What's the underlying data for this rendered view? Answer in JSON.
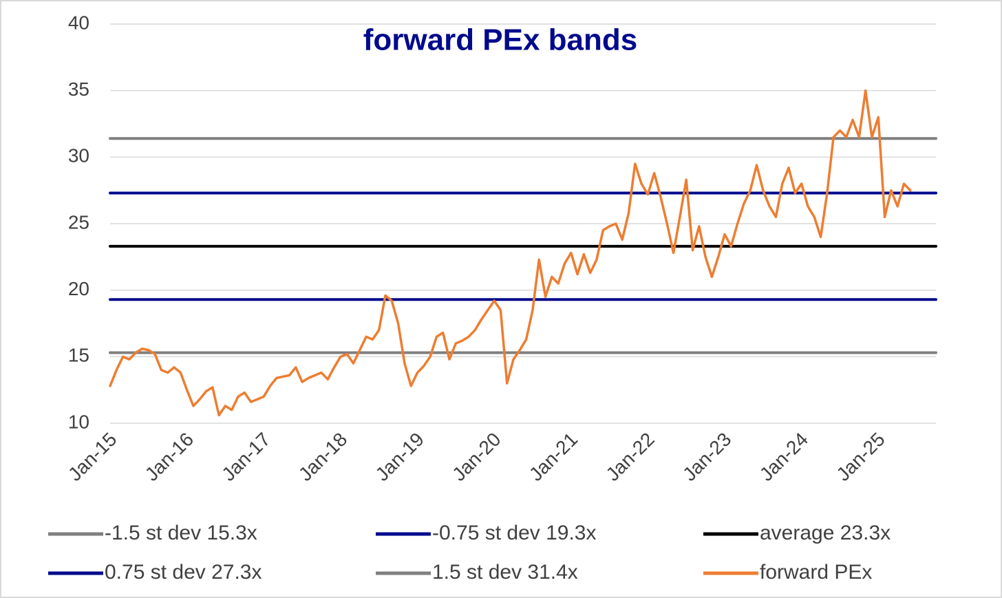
{
  "chart_data": {
    "type": "line",
    "title": "forward PEx bands",
    "categories": [
      "Jan-15",
      null,
      null,
      null,
      null,
      null,
      null,
      null,
      null,
      null,
      null,
      null,
      "Jan-16",
      null,
      null,
      null,
      null,
      null,
      null,
      null,
      null,
      null,
      null,
      null,
      "Jan-17",
      null,
      null,
      null,
      null,
      null,
      null,
      null,
      null,
      null,
      null,
      null,
      "Jan-18",
      null,
      null,
      null,
      null,
      null,
      null,
      null,
      null,
      null,
      null,
      null,
      "Jan-19",
      null,
      null,
      null,
      null,
      null,
      null,
      null,
      null,
      null,
      null,
      null,
      "Jan-20",
      null,
      null,
      null,
      null,
      null,
      null,
      null,
      null,
      null,
      null,
      null,
      "Jan-21",
      null,
      null,
      null,
      null,
      null,
      null,
      null,
      null,
      null,
      null,
      null,
      "Jan-22",
      null,
      null,
      null,
      null,
      null,
      null,
      null,
      null,
      null,
      null,
      null,
      "Jan-23",
      null,
      null,
      null,
      null,
      null,
      null,
      null,
      null,
      null,
      null,
      null,
      "Jan-24",
      null,
      null,
      null,
      null,
      null,
      null,
      null,
      null,
      null,
      null,
      null,
      "Jan-25",
      null,
      null,
      null,
      null,
      null,
      null,
      null,
      null,
      null
    ],
    "ylim": [
      10,
      40
    ],
    "yticks": [
      10,
      15,
      20,
      25,
      30,
      35,
      40
    ],
    "grid": true,
    "series": [
      {
        "name": "-1.5 st dev 15.3x",
        "color": "#7f7f7f",
        "width": 4,
        "values": [
          15.3,
          15.3,
          15.3,
          15.3,
          15.3,
          15.3,
          15.3,
          15.3,
          15.3,
          15.3,
          15.3,
          15.3,
          15.3,
          15.3,
          15.3,
          15.3,
          15.3,
          15.3,
          15.3,
          15.3,
          15.3,
          15.3,
          15.3,
          15.3,
          15.3,
          15.3,
          15.3,
          15.3,
          15.3,
          15.3,
          15.3,
          15.3,
          15.3,
          15.3,
          15.3,
          15.3,
          15.3,
          15.3,
          15.3,
          15.3,
          15.3,
          15.3,
          15.3,
          15.3,
          15.3,
          15.3,
          15.3,
          15.3,
          15.3,
          15.3,
          15.3,
          15.3,
          15.3,
          15.3,
          15.3,
          15.3,
          15.3,
          15.3,
          15.3,
          15.3,
          15.3,
          15.3,
          15.3,
          15.3,
          15.3,
          15.3,
          15.3,
          15.3,
          15.3,
          15.3,
          15.3,
          15.3,
          15.3,
          15.3,
          15.3,
          15.3,
          15.3,
          15.3,
          15.3,
          15.3,
          15.3,
          15.3,
          15.3,
          15.3,
          15.3,
          15.3,
          15.3,
          15.3,
          15.3,
          15.3,
          15.3,
          15.3,
          15.3,
          15.3,
          15.3,
          15.3,
          15.3,
          15.3,
          15.3,
          15.3,
          15.3,
          15.3,
          15.3,
          15.3,
          15.3,
          15.3,
          15.3,
          15.3,
          15.3,
          15.3,
          15.3,
          15.3,
          15.3,
          15.3,
          15.3,
          15.3,
          15.3,
          15.3,
          15.3,
          15.3,
          15.3,
          15.3,
          15.3,
          15.3,
          15.3,
          15.3,
          15.3,
          15.3,
          15.3,
          15.3
        ]
      },
      {
        "name": "-0.75 st dev 19.3x",
        "color": "#000a8c",
        "width": 4,
        "values": [
          19.3,
          19.3,
          19.3,
          19.3,
          19.3,
          19.3,
          19.3,
          19.3,
          19.3,
          19.3,
          19.3,
          19.3,
          19.3,
          19.3,
          19.3,
          19.3,
          19.3,
          19.3,
          19.3,
          19.3,
          19.3,
          19.3,
          19.3,
          19.3,
          19.3,
          19.3,
          19.3,
          19.3,
          19.3,
          19.3,
          19.3,
          19.3,
          19.3,
          19.3,
          19.3,
          19.3,
          19.3,
          19.3,
          19.3,
          19.3,
          19.3,
          19.3,
          19.3,
          19.3,
          19.3,
          19.3,
          19.3,
          19.3,
          19.3,
          19.3,
          19.3,
          19.3,
          19.3,
          19.3,
          19.3,
          19.3,
          19.3,
          19.3,
          19.3,
          19.3,
          19.3,
          19.3,
          19.3,
          19.3,
          19.3,
          19.3,
          19.3,
          19.3,
          19.3,
          19.3,
          19.3,
          19.3,
          19.3,
          19.3,
          19.3,
          19.3,
          19.3,
          19.3,
          19.3,
          19.3,
          19.3,
          19.3,
          19.3,
          19.3,
          19.3,
          19.3,
          19.3,
          19.3,
          19.3,
          19.3,
          19.3,
          19.3,
          19.3,
          19.3,
          19.3,
          19.3,
          19.3,
          19.3,
          19.3,
          19.3,
          19.3,
          19.3,
          19.3,
          19.3,
          19.3,
          19.3,
          19.3,
          19.3,
          19.3,
          19.3,
          19.3,
          19.3,
          19.3,
          19.3,
          19.3,
          19.3,
          19.3,
          19.3,
          19.3,
          19.3,
          19.3,
          19.3,
          19.3,
          19.3,
          19.3,
          19.3,
          19.3,
          19.3,
          19.3,
          19.3
        ]
      },
      {
        "name": "average 23.3x",
        "color": "#000000",
        "width": 4,
        "values": [
          23.3,
          23.3,
          23.3,
          23.3,
          23.3,
          23.3,
          23.3,
          23.3,
          23.3,
          23.3,
          23.3,
          23.3,
          23.3,
          23.3,
          23.3,
          23.3,
          23.3,
          23.3,
          23.3,
          23.3,
          23.3,
          23.3,
          23.3,
          23.3,
          23.3,
          23.3,
          23.3,
          23.3,
          23.3,
          23.3,
          23.3,
          23.3,
          23.3,
          23.3,
          23.3,
          23.3,
          23.3,
          23.3,
          23.3,
          23.3,
          23.3,
          23.3,
          23.3,
          23.3,
          23.3,
          23.3,
          23.3,
          23.3,
          23.3,
          23.3,
          23.3,
          23.3,
          23.3,
          23.3,
          23.3,
          23.3,
          23.3,
          23.3,
          23.3,
          23.3,
          23.3,
          23.3,
          23.3,
          23.3,
          23.3,
          23.3,
          23.3,
          23.3,
          23.3,
          23.3,
          23.3,
          23.3,
          23.3,
          23.3,
          23.3,
          23.3,
          23.3,
          23.3,
          23.3,
          23.3,
          23.3,
          23.3,
          23.3,
          23.3,
          23.3,
          23.3,
          23.3,
          23.3,
          23.3,
          23.3,
          23.3,
          23.3,
          23.3,
          23.3,
          23.3,
          23.3,
          23.3,
          23.3,
          23.3,
          23.3,
          23.3,
          23.3,
          23.3,
          23.3,
          23.3,
          23.3,
          23.3,
          23.3,
          23.3,
          23.3,
          23.3,
          23.3,
          23.3,
          23.3,
          23.3,
          23.3,
          23.3,
          23.3,
          23.3,
          23.3,
          23.3,
          23.3,
          23.3,
          23.3,
          23.3,
          23.3,
          23.3,
          23.3,
          23.3,
          23.3
        ]
      },
      {
        "name": "0.75 st dev 27.3x",
        "color": "#000a8c",
        "width": 4,
        "values": [
          27.3,
          27.3,
          27.3,
          27.3,
          27.3,
          27.3,
          27.3,
          27.3,
          27.3,
          27.3,
          27.3,
          27.3,
          27.3,
          27.3,
          27.3,
          27.3,
          27.3,
          27.3,
          27.3,
          27.3,
          27.3,
          27.3,
          27.3,
          27.3,
          27.3,
          27.3,
          27.3,
          27.3,
          27.3,
          27.3,
          27.3,
          27.3,
          27.3,
          27.3,
          27.3,
          27.3,
          27.3,
          27.3,
          27.3,
          27.3,
          27.3,
          27.3,
          27.3,
          27.3,
          27.3,
          27.3,
          27.3,
          27.3,
          27.3,
          27.3,
          27.3,
          27.3,
          27.3,
          27.3,
          27.3,
          27.3,
          27.3,
          27.3,
          27.3,
          27.3,
          27.3,
          27.3,
          27.3,
          27.3,
          27.3,
          27.3,
          27.3,
          27.3,
          27.3,
          27.3,
          27.3,
          27.3,
          27.3,
          27.3,
          27.3,
          27.3,
          27.3,
          27.3,
          27.3,
          27.3,
          27.3,
          27.3,
          27.3,
          27.3,
          27.3,
          27.3,
          27.3,
          27.3,
          27.3,
          27.3,
          27.3,
          27.3,
          27.3,
          27.3,
          27.3,
          27.3,
          27.3,
          27.3,
          27.3,
          27.3,
          27.3,
          27.3,
          27.3,
          27.3,
          27.3,
          27.3,
          27.3,
          27.3,
          27.3,
          27.3,
          27.3,
          27.3,
          27.3,
          27.3,
          27.3,
          27.3,
          27.3,
          27.3,
          27.3,
          27.3,
          27.3,
          27.3,
          27.3,
          27.3,
          27.3,
          27.3,
          27.3,
          27.3,
          27.3,
          27.3
        ]
      },
      {
        "name": "1.5 st dev 31.4x",
        "color": "#7f7f7f",
        "width": 4,
        "values": [
          31.4,
          31.4,
          31.4,
          31.4,
          31.4,
          31.4,
          31.4,
          31.4,
          31.4,
          31.4,
          31.4,
          31.4,
          31.4,
          31.4,
          31.4,
          31.4,
          31.4,
          31.4,
          31.4,
          31.4,
          31.4,
          31.4,
          31.4,
          31.4,
          31.4,
          31.4,
          31.4,
          31.4,
          31.4,
          31.4,
          31.4,
          31.4,
          31.4,
          31.4,
          31.4,
          31.4,
          31.4,
          31.4,
          31.4,
          31.4,
          31.4,
          31.4,
          31.4,
          31.4,
          31.4,
          31.4,
          31.4,
          31.4,
          31.4,
          31.4,
          31.4,
          31.4,
          31.4,
          31.4,
          31.4,
          31.4,
          31.4,
          31.4,
          31.4,
          31.4,
          31.4,
          31.4,
          31.4,
          31.4,
          31.4,
          31.4,
          31.4,
          31.4,
          31.4,
          31.4,
          31.4,
          31.4,
          31.4,
          31.4,
          31.4,
          31.4,
          31.4,
          31.4,
          31.4,
          31.4,
          31.4,
          31.4,
          31.4,
          31.4,
          31.4,
          31.4,
          31.4,
          31.4,
          31.4,
          31.4,
          31.4,
          31.4,
          31.4,
          31.4,
          31.4,
          31.4,
          31.4,
          31.4,
          31.4,
          31.4,
          31.4,
          31.4,
          31.4,
          31.4,
          31.4,
          31.4,
          31.4,
          31.4,
          31.4,
          31.4,
          31.4,
          31.4,
          31.4,
          31.4,
          31.4,
          31.4,
          31.4,
          31.4,
          31.4,
          31.4,
          31.4,
          31.4,
          31.4,
          31.4,
          31.4,
          31.4,
          31.4,
          31.4,
          31.4,
          31.4
        ]
      },
      {
        "name": "forward PEx",
        "color": "#ed7d31",
        "width": 3.5,
        "values": [
          12.8,
          14.0,
          15.0,
          14.8,
          15.3,
          15.6,
          15.5,
          15.2,
          14.0,
          13.8,
          14.2,
          13.8,
          12.5,
          11.3,
          11.8,
          12.4,
          12.7,
          10.6,
          11.3,
          11.0,
          12.0,
          12.3,
          11.6,
          11.8,
          12.0,
          12.8,
          13.4,
          13.5,
          13.6,
          14.2,
          13.1,
          13.4,
          13.6,
          13.8,
          13.3,
          14.2,
          15.0,
          15.2,
          14.5,
          15.5,
          16.5,
          16.3,
          17.0,
          19.6,
          19.2,
          17.5,
          14.5,
          12.8,
          13.8,
          14.3,
          15.0,
          16.5,
          16.8,
          14.8,
          16.0,
          16.2,
          16.5,
          17.0,
          17.8,
          18.5,
          19.2,
          18.5,
          13.0,
          14.8,
          15.5,
          16.3,
          18.5,
          22.3,
          19.5,
          21.0,
          20.5,
          22.0,
          22.8,
          21.2,
          22.7,
          21.3,
          22.3,
          24.5,
          24.8,
          25.0,
          23.8,
          25.8,
          29.5,
          28.0,
          27.2,
          28.8,
          27.0,
          25.0,
          22.8,
          25.5,
          28.3,
          23.0,
          24.8,
          22.5,
          21.0,
          22.5,
          24.2,
          23.3,
          25.0,
          26.5,
          27.5,
          29.4,
          27.5,
          26.3,
          25.5,
          28.0,
          29.2,
          27.3,
          28.0,
          26.3,
          25.5,
          24.0,
          27.3,
          31.5,
          32.0,
          31.5,
          32.8,
          31.5,
          35.0,
          31.5,
          33.0,
          25.5,
          27.5,
          26.3,
          28.0,
          27.5,
          null,
          null,
          null,
          null
        ]
      }
    ]
  }
}
